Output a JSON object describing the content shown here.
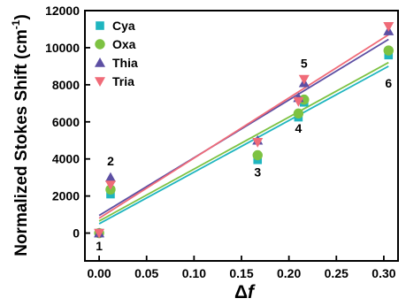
{
  "chart_data": {
    "type": "scatter",
    "title": "",
    "xlabel_symbol": "Δ",
    "xlabel_var": "f",
    "ylabel": "Normalized Stokes Shift (cm",
    "ylabel_sup": "-1",
    "ylabel_close": ")",
    "xlim": [
      -0.015,
      0.315
    ],
    "ylim": [
      -1500,
      12000
    ],
    "x_ticks": [
      0.0,
      0.05,
      0.1,
      0.15,
      0.2,
      0.25,
      0.3
    ],
    "x_tick_labels": [
      "0.00",
      "0.05",
      "0.10",
      "0.15",
      "0.20",
      "0.25",
      "0.30"
    ],
    "y_ticks": [
      0,
      2000,
      4000,
      6000,
      8000,
      10000,
      12000
    ],
    "y_tick_labels": [
      "0",
      "2000",
      "4000",
      "6000",
      "8000",
      "10000",
      "12000"
    ],
    "grid": false,
    "legend_position": "top-left",
    "series": [
      {
        "name": "Cya",
        "marker": "square",
        "color": "#1fb5bf",
        "x": [
          0.0,
          0.012,
          0.167,
          0.21,
          0.216,
          0.305
        ],
        "y": [
          0,
          2100,
          3950,
          6250,
          7050,
          9600
        ],
        "fit": [
          [
            0.0,
            500
          ],
          [
            0.305,
            9000
          ]
        ]
      },
      {
        "name": "Oxa",
        "marker": "circle",
        "color": "#7dc242",
        "x": [
          0.0,
          0.012,
          0.167,
          0.21,
          0.216,
          0.305
        ],
        "y": [
          0,
          2350,
          4200,
          6450,
          7200,
          9850
        ],
        "fit": [
          [
            0.0,
            650
          ],
          [
            0.305,
            9200
          ]
        ]
      },
      {
        "name": "Thia",
        "marker": "triangle-up",
        "color": "#5d4fa3",
        "x": [
          0.0,
          0.012,
          0.167,
          0.21,
          0.216,
          0.305
        ],
        "y": [
          0,
          3000,
          5000,
          7300,
          8100,
          10900
        ],
        "fit": [
          [
            0.0,
            950
          ],
          [
            0.305,
            10450
          ]
        ]
      },
      {
        "name": "Tria",
        "marker": "triangle-down",
        "color": "#f06b78",
        "x": [
          0.0,
          0.012,
          0.167,
          0.21,
          0.216,
          0.305
        ],
        "y": [
          0,
          2600,
          4900,
          7100,
          8300,
          11150
        ],
        "fit": [
          [
            0.0,
            800
          ],
          [
            0.305,
            10700
          ]
        ]
      }
    ],
    "annotations": [
      {
        "text": "1",
        "x": 0.0,
        "y": -700
      },
      {
        "text": "2",
        "x": 0.012,
        "y": 3900
      },
      {
        "text": "3",
        "x": 0.167,
        "y": 3300
      },
      {
        "text": "4",
        "x": 0.21,
        "y": 5650
      },
      {
        "text": "5",
        "x": 0.216,
        "y": 9150
      },
      {
        "text": "6",
        "x": 0.305,
        "y": 8100
      }
    ]
  }
}
